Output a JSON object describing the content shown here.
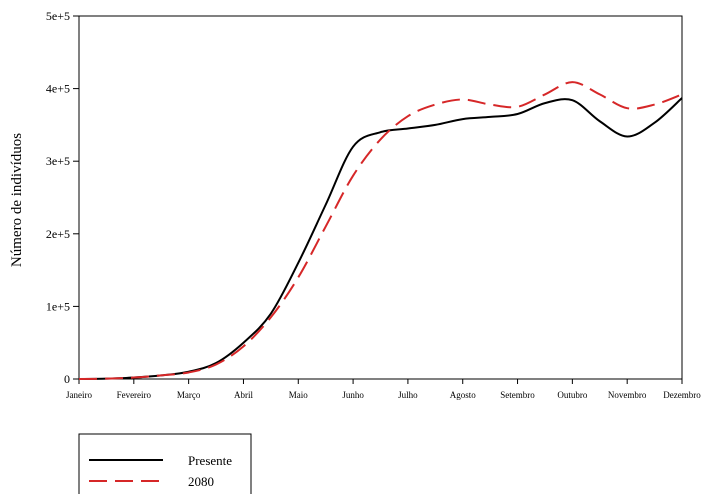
{
  "chart_data": {
    "type": "line",
    "title": "",
    "xlabel": "",
    "ylabel": "Número de indivíduos",
    "categories": [
      "Janeiro",
      "Fevereiro",
      "Março",
      "Abril",
      "Maio",
      "Junho",
      "Julho",
      "Agosto",
      "Setembro",
      "Outubro",
      "Novembro",
      "Dezembro"
    ],
    "y_ticks": [
      {
        "value": 0,
        "label": "0"
      },
      {
        "value": 100000,
        "label": "1e+5"
      },
      {
        "value": 200000,
        "label": "2e+5"
      },
      {
        "value": 300000,
        "label": "3e+5"
      },
      {
        "value": 400000,
        "label": "4e+5"
      },
      {
        "value": 500000,
        "label": "5e+5"
      }
    ],
    "ylim": [
      0,
      500000
    ],
    "grid": false,
    "legend_position": "bottom-left",
    "series": [
      {
        "name": "Presente",
        "color": "#000000",
        "dash": "solid",
        "points": [
          [
            0,
            0
          ],
          [
            0.5,
            500
          ],
          [
            1,
            2000
          ],
          [
            1.5,
            5000
          ],
          [
            2,
            10000
          ],
          [
            2.5,
            22000
          ],
          [
            3,
            50000
          ],
          [
            3.5,
            90000
          ],
          [
            4,
            160000
          ],
          [
            4.5,
            240000
          ],
          [
            5,
            320000
          ],
          [
            5.5,
            340000
          ],
          [
            6,
            345000
          ],
          [
            6.5,
            350000
          ],
          [
            7,
            358000
          ],
          [
            7.5,
            361000
          ],
          [
            8,
            365000
          ],
          [
            8.5,
            380000
          ],
          [
            9,
            384000
          ],
          [
            9.5,
            355000
          ],
          [
            10,
            334000
          ],
          [
            10.5,
            353000
          ],
          [
            11,
            387000
          ]
        ]
      },
      {
        "name": "2080",
        "color": "#d62728",
        "dash": "dashed",
        "points": [
          [
            0,
            0
          ],
          [
            0.5,
            500
          ],
          [
            1,
            2000
          ],
          [
            1.5,
            5000
          ],
          [
            2,
            9000
          ],
          [
            2.5,
            20000
          ],
          [
            3,
            45000
          ],
          [
            3.5,
            85000
          ],
          [
            4,
            140000
          ],
          [
            4.5,
            210000
          ],
          [
            5,
            280000
          ],
          [
            5.5,
            330000
          ],
          [
            6,
            362000
          ],
          [
            6.5,
            378000
          ],
          [
            7,
            385000
          ],
          [
            7.5,
            378000
          ],
          [
            8,
            375000
          ],
          [
            8.5,
            392000
          ],
          [
            9,
            409000
          ],
          [
            9.5,
            392000
          ],
          [
            10,
            373000
          ],
          [
            10.5,
            378000
          ],
          [
            11,
            392000
          ]
        ]
      }
    ]
  }
}
